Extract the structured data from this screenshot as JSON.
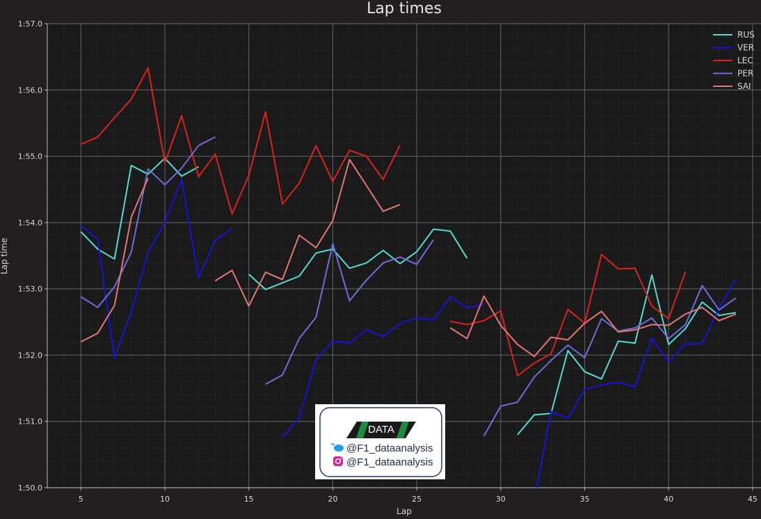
{
  "chart_data": {
    "type": "line",
    "title": "Lap times",
    "xlabel": "Lap",
    "ylabel": "Lap time",
    "xlim": [
      3,
      45.5
    ],
    "ylim": [
      110.0,
      117.0
    ],
    "xticks": [
      5,
      10,
      15,
      20,
      25,
      30,
      35,
      40,
      45
    ],
    "yticks": [
      110,
      111,
      112,
      113,
      114,
      115,
      116,
      117
    ],
    "ytick_labels": [
      "1:50.0",
      "1:51.0",
      "1:52.0",
      "1:53.0",
      "1:54.0",
      "1:55.0",
      "1:56.0",
      "1:57.0"
    ],
    "grid": true,
    "legend_position": "top-right",
    "series": [
      {
        "name": "RUS",
        "color": "#56dcd7",
        "segments": [
          [
            [
              5,
              113.86
            ],
            [
              6,
              113.6
            ],
            [
              7,
              113.45
            ],
            [
              8,
              114.86
            ],
            [
              9,
              114.73
            ],
            [
              10,
              114.97
            ],
            [
              11,
              114.7
            ],
            [
              12,
              114.84
            ]
          ],
          [
            [
              15,
              113.22
            ],
            [
              16,
              112.99
            ],
            [
              17,
              113.09
            ],
            [
              18,
              113.19
            ],
            [
              19,
              113.54
            ],
            [
              20,
              113.6
            ],
            [
              21,
              113.31
            ],
            [
              22,
              113.39
            ],
            [
              23,
              113.58
            ],
            [
              24,
              113.38
            ],
            [
              25,
              113.56
            ],
            [
              26,
              113.9
            ],
            [
              27,
              113.87
            ],
            [
              28,
              113.46
            ]
          ],
          [
            [
              31,
              110.8
            ],
            [
              32,
              111.1
            ],
            [
              33,
              111.12
            ],
            [
              34,
              112.07
            ],
            [
              35,
              111.75
            ],
            [
              36,
              111.64
            ],
            [
              37,
              112.21
            ],
            [
              38,
              112.18
            ],
            [
              39,
              113.21
            ],
            [
              40,
              112.16
            ],
            [
              41,
              112.4
            ],
            [
              42,
              112.8
            ],
            [
              43,
              112.6
            ],
            [
              44,
              112.64
            ]
          ]
        ]
      },
      {
        "name": "VER",
        "color": "#1414dc",
        "segments": [
          [
            [
              5,
              113.95
            ],
            [
              6,
              113.75
            ],
            [
              7,
              111.95
            ],
            [
              8,
              112.65
            ],
            [
              9,
              113.55
            ],
            [
              10,
              114.0
            ],
            [
              11,
              114.65
            ],
            [
              12,
              113.17
            ],
            [
              13,
              113.73
            ],
            [
              14,
              113.91
            ]
          ],
          [
            [
              17,
              110.76
            ],
            [
              18,
              111.05
            ],
            [
              19,
              111.93
            ],
            [
              20,
              112.21
            ],
            [
              21,
              112.18
            ],
            [
              22,
              112.38
            ],
            [
              23,
              112.28
            ],
            [
              24,
              112.48
            ],
            [
              25,
              112.56
            ],
            [
              26,
              112.53
            ],
            [
              27,
              112.88
            ],
            [
              28,
              112.71
            ],
            [
              29,
              112.77
            ]
          ],
          [
            [
              32,
              109.8
            ],
            [
              33,
              111.15
            ],
            [
              34,
              111.05
            ],
            [
              35,
              111.48
            ],
            [
              36,
              111.55
            ],
            [
              37,
              111.59
            ],
            [
              38,
              111.52
            ],
            [
              39,
              112.25
            ],
            [
              40,
              111.9
            ],
            [
              41,
              112.17
            ],
            [
              42,
              112.17
            ],
            [
              43,
              112.7
            ],
            [
              44,
              113.15
            ]
          ]
        ]
      },
      {
        "name": "LEC",
        "color": "#dc231e",
        "segments": [
          [
            [
              5,
              115.18
            ],
            [
              6,
              115.29
            ],
            [
              7,
              115.58
            ],
            [
              8,
              115.86
            ],
            [
              9,
              116.33
            ],
            [
              10,
              114.9
            ],
            [
              11,
              115.61
            ],
            [
              12,
              114.69
            ],
            [
              13,
              115.03
            ],
            [
              14,
              114.13
            ],
            [
              15,
              114.71
            ],
            [
              16,
              115.67
            ],
            [
              17,
              114.28
            ],
            [
              18,
              114.59
            ],
            [
              19,
              115.16
            ],
            [
              20,
              114.62
            ],
            [
              21,
              115.09
            ],
            [
              22,
              115.0
            ],
            [
              23,
              114.65
            ],
            [
              24,
              115.17
            ]
          ],
          [
            [
              27,
              112.51
            ],
            [
              28,
              112.46
            ],
            [
              29,
              112.52
            ],
            [
              30,
              112.67
            ],
            [
              31,
              111.69
            ],
            [
              32,
              111.88
            ],
            [
              33,
              112.02
            ],
            [
              34,
              112.69
            ],
            [
              35,
              112.48
            ],
            [
              36,
              113.52
            ],
            [
              37,
              113.3
            ],
            [
              38,
              113.31
            ],
            [
              39,
              112.74
            ],
            [
              40,
              112.55
            ],
            [
              41,
              113.26
            ]
          ]
        ]
      },
      {
        "name": "PER",
        "color": "#6e6edc",
        "segments": [
          [
            [
              5,
              112.88
            ],
            [
              6,
              112.72
            ],
            [
              7,
              113.03
            ],
            [
              8,
              113.55
            ],
            [
              9,
              114.81
            ],
            [
              10,
              114.57
            ],
            [
              11,
              114.82
            ],
            [
              12,
              115.16
            ],
            [
              13,
              115.29
            ]
          ],
          [
            [
              16,
              111.56
            ],
            [
              17,
              111.7
            ],
            [
              18,
              112.25
            ],
            [
              19,
              112.57
            ],
            [
              20,
              113.68
            ],
            [
              21,
              112.82
            ],
            [
              22,
              113.13
            ],
            [
              23,
              113.39
            ],
            [
              24,
              113.48
            ],
            [
              25,
              113.37
            ],
            [
              26,
              113.74
            ]
          ],
          [
            [
              29,
              110.78
            ],
            [
              30,
              111.23
            ],
            [
              31,
              111.29
            ],
            [
              32,
              111.67
            ],
            [
              33,
              111.92
            ],
            [
              34,
              112.15
            ],
            [
              35,
              111.96
            ],
            [
              36,
              112.55
            ],
            [
              37,
              112.36
            ],
            [
              38,
              112.41
            ],
            [
              39,
              112.56
            ],
            [
              40,
              112.25
            ],
            [
              41,
              112.46
            ],
            [
              42,
              113.05
            ],
            [
              43,
              112.68
            ],
            [
              44,
              112.86
            ]
          ]
        ]
      },
      {
        "name": "SAI",
        "color": "#e67873",
        "segments": [
          [
            [
              5,
              112.2
            ],
            [
              6,
              112.33
            ],
            [
              7,
              112.75
            ],
            [
              8,
              114.08
            ],
            [
              9,
              114.67
            ]
          ],
          [
            [
              13,
              113.12
            ],
            [
              14,
              113.28
            ],
            [
              15,
              112.74
            ],
            [
              16,
              113.25
            ],
            [
              17,
              113.14
            ],
            [
              18,
              113.81
            ],
            [
              19,
              113.62
            ],
            [
              20,
              114.03
            ],
            [
              21,
              114.95
            ],
            [
              22,
              114.56
            ],
            [
              23,
              114.17
            ],
            [
              24,
              114.27
            ]
          ],
          [
            [
              27,
              112.41
            ],
            [
              28,
              112.25
            ],
            [
              29,
              112.89
            ],
            [
              30,
              112.45
            ],
            [
              31,
              112.16
            ],
            [
              32,
              111.98
            ],
            [
              33,
              112.27
            ],
            [
              34,
              112.23
            ],
            [
              35,
              112.48
            ],
            [
              36,
              112.66
            ],
            [
              37,
              112.35
            ],
            [
              38,
              112.38
            ],
            [
              39,
              112.46
            ],
            [
              40,
              112.45
            ],
            [
              41,
              112.62
            ],
            [
              42,
              112.72
            ],
            [
              43,
              112.52
            ],
            [
              44,
              112.62
            ]
          ]
        ]
      }
    ]
  },
  "watermark": {
    "logo_text": "DATA",
    "twitter_handle": "@F1_dataanalysis",
    "instagram_handle": "@F1_dataanalysis"
  }
}
